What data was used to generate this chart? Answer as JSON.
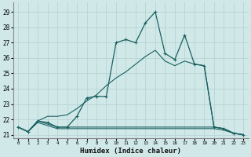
{
  "xlabel": "Humidex (Indice chaleur)",
  "background_color": "#d0e8e8",
  "grid_color": "#b8d4d4",
  "line_color": "#1a6060",
  "xlim": [
    -0.5,
    23.5
  ],
  "ylim": [
    20.8,
    29.6
  ],
  "yticks": [
    21,
    22,
    23,
    24,
    25,
    26,
    27,
    28,
    29
  ],
  "xtick_labels": [
    "0",
    "1",
    "2",
    "3",
    "4",
    "5",
    "6",
    "7",
    "8",
    "9",
    "10",
    "11",
    "12",
    "13",
    "14",
    "15",
    "16",
    "17",
    "18",
    "19",
    "20",
    "21",
    "22",
    "23"
  ],
  "series": [
    {
      "x": [
        0,
        1,
        2,
        3,
        4,
        5,
        6,
        7,
        8,
        9,
        10,
        11,
        12,
        13,
        14,
        15,
        16,
        17,
        18,
        19,
        20,
        21,
        22,
        23
      ],
      "y": [
        21.5,
        21.2,
        21.9,
        21.8,
        21.5,
        21.5,
        22.2,
        23.4,
        23.5,
        23.5,
        27.0,
        27.2,
        27.0,
        28.3,
        29.0,
        26.3,
        25.9,
        27.5,
        25.6,
        25.5,
        21.5,
        21.4,
        21.1,
        21.0
      ],
      "marker": "+"
    },
    {
      "x": [
        0,
        1,
        2,
        3,
        4,
        5,
        6,
        7,
        8,
        9,
        10,
        11,
        12,
        13,
        14,
        15,
        16,
        17,
        18,
        19,
        20,
        21,
        22,
        23
      ],
      "y": [
        21.5,
        21.2,
        21.9,
        22.2,
        22.2,
        22.3,
        22.7,
        23.2,
        23.6,
        24.2,
        24.7,
        25.1,
        25.6,
        26.1,
        26.5,
        25.8,
        25.5,
        25.8,
        25.6,
        25.5,
        21.5,
        21.4,
        21.1,
        21.0
      ],
      "marker": null
    },
    {
      "x": [
        0,
        1,
        2,
        3,
        4,
        5,
        6,
        7,
        8,
        9,
        10,
        11,
        12,
        13,
        14,
        15,
        16,
        17,
        18,
        19,
        20,
        21,
        22,
        23
      ],
      "y": [
        21.5,
        21.2,
        21.8,
        21.6,
        21.4,
        21.4,
        21.4,
        21.4,
        21.4,
        21.4,
        21.4,
        21.4,
        21.4,
        21.4,
        21.4,
        21.4,
        21.4,
        21.4,
        21.4,
        21.4,
        21.4,
        21.3,
        21.1,
        21.0
      ],
      "marker": null
    },
    {
      "x": [
        0,
        1,
        2,
        3,
        4,
        5,
        6,
        7,
        8,
        9,
        10,
        11,
        12,
        13,
        14,
        15,
        16,
        17,
        18,
        19,
        20,
        21,
        22,
        23
      ],
      "y": [
        21.5,
        21.2,
        21.9,
        21.7,
        21.5,
        21.5,
        21.5,
        21.5,
        21.5,
        21.5,
        21.5,
        21.5,
        21.5,
        21.5,
        21.5,
        21.5,
        21.5,
        21.5,
        21.5,
        21.5,
        21.5,
        21.4,
        21.1,
        21.0
      ],
      "marker": null
    }
  ]
}
